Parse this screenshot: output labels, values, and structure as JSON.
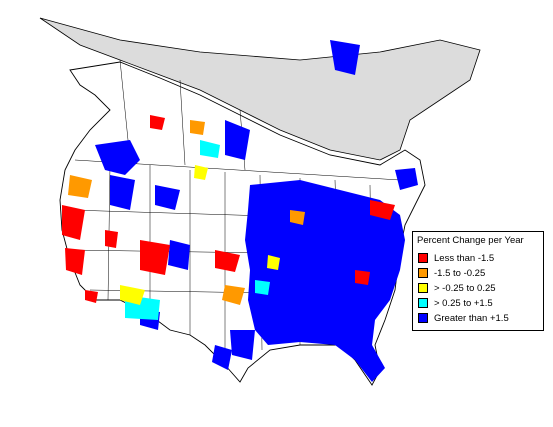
{
  "legend": {
    "title": "Percent Change per Year",
    "items": [
      {
        "label": "Less than -1.5",
        "color": "#ff0000"
      },
      {
        "label": "-1.5 to -0.25",
        "color": "#ff9900"
      },
      {
        "label": "> -0.25 to 0.25",
        "color": "#ffff00"
      },
      {
        "label": "> 0.25 to +1.5",
        "color": "#00ffff"
      },
      {
        "label": "Greater than +1.5",
        "color": "#0000ff"
      }
    ]
  },
  "colors": {
    "land": "#ffffff",
    "no_data_gray": "#dcdcdc",
    "border": "#000000",
    "decrease_strong": "#ff0000",
    "decrease_moderate": "#ff9900",
    "stable": "#ffff00",
    "increase_moderate": "#00ffff",
    "increase_strong": "#0000ff"
  }
}
